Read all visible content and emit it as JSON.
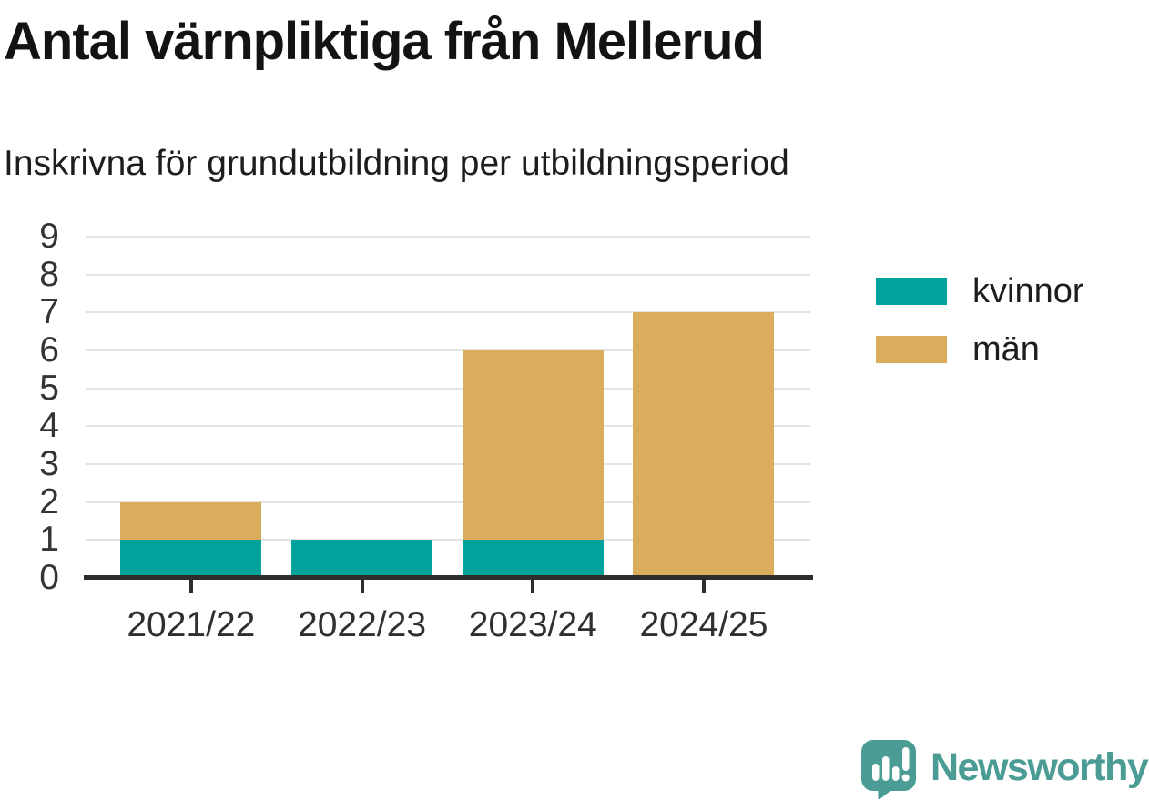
{
  "header": {
    "title": "Antal värnpliktiga från Mellerud",
    "subtitle": "Inskrivna för grundutbildning per utbildningsperiod"
  },
  "chart_data": {
    "type": "bar",
    "stacked": true,
    "title": "Antal värnpliktiga från Mellerud",
    "subtitle": "Inskrivna för grundutbildning per utbildningsperiod",
    "categories": [
      "2021/22",
      "2022/23",
      "2023/24",
      "2024/25"
    ],
    "series": [
      {
        "name": "kvinnor",
        "color": "#00a39b",
        "values": [
          1,
          1,
          1,
          0
        ]
      },
      {
        "name": "män",
        "color": "#d9ad5b",
        "values": [
          1,
          0,
          5,
          7
        ]
      }
    ],
    "xlabel": "",
    "ylabel": "",
    "ylim": [
      0,
      9
    ],
    "yticks": [
      0,
      1,
      2,
      3,
      4,
      5,
      6,
      7,
      8,
      9
    ],
    "grid": true,
    "legend_position": "right"
  },
  "branding": {
    "logo_text": "Newsworthy",
    "logo_color": "#4a9c95"
  },
  "palette": {
    "axis": "#2d2d2d",
    "gridline": "#e3e3e3"
  }
}
